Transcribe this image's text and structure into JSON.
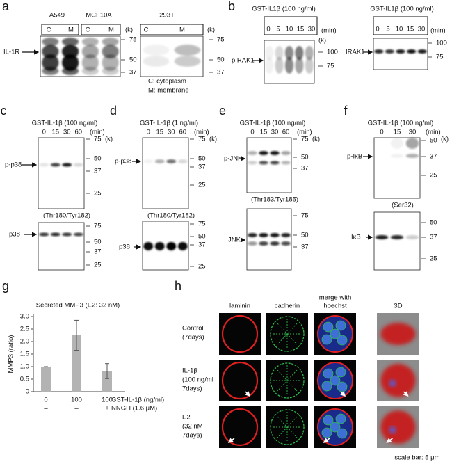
{
  "panels": {
    "a": {
      "label": "a",
      "blots": [
        {
          "headers": [
            "A549",
            "MCF10A"
          ],
          "lanes": [
            "C",
            "M",
            "C",
            "M"
          ],
          "unit": "(k)",
          "markers": [
            75,
            50,
            37
          ]
        },
        {
          "headers": [
            "293T"
          ],
          "lanes": [
            "C",
            "M"
          ],
          "unit": "(k)",
          "markers": [
            75,
            50,
            37
          ]
        }
      ],
      "protein": "IL-1R",
      "legend": [
        "C: cytoplasm",
        "M: membrane"
      ]
    },
    "b": {
      "label": "b",
      "blots": [
        {
          "treatment": "GST-IL1β (100 ng/ml)",
          "times": [
            0,
            5,
            10,
            15,
            30
          ],
          "time_unit": "(min)",
          "unit": "(k)",
          "protein": "pIRAK1",
          "markers": [
            100,
            75
          ]
        },
        {
          "treatment": "GST-IL1β (100 ng/ml)",
          "times": [
            0,
            5,
            10,
            15,
            30
          ],
          "time_unit": "(min)",
          "protein": "IRAK1",
          "markers": [
            100,
            75
          ]
        }
      ]
    },
    "c": {
      "label": "c",
      "treatment": "GST-IL-1β (100 ng/ml)",
      "times": [
        0,
        15,
        30,
        60
      ],
      "time_unit": "(min)",
      "unit": "(k)",
      "blots": [
        {
          "protein": "p-p38",
          "site": "(Thr180/Tyr182)",
          "markers": [
            75,
            50,
            37,
            25
          ]
        },
        {
          "protein": "p38",
          "markers": [
            75,
            50,
            37,
            25
          ]
        }
      ]
    },
    "d": {
      "label": "d",
      "treatment": "GST-IL-1β (1 ng/ml)",
      "times": [
        0,
        15,
        30,
        60
      ],
      "time_unit": "(min)",
      "unit": "(k)",
      "blots": [
        {
          "protein": "p-p38",
          "site": "(Thr180/Tyr182)",
          "markers": [
            75,
            50,
            37,
            25
          ]
        },
        {
          "protein": "p38",
          "markers": [
            75,
            50,
            37,
            25
          ]
        }
      ]
    },
    "e": {
      "label": "e",
      "treatment": "GST-IL-1β (100 ng/ml)",
      "times": [
        0,
        15,
        30,
        60
      ],
      "time_unit": "(min)",
      "unit": "(k)",
      "blots": [
        {
          "protein": "p-JNK",
          "site": "(Thr183/Tyr185)",
          "markers": [
            75,
            50,
            37
          ]
        },
        {
          "protein": "JNK",
          "markers": [
            75,
            50,
            37
          ]
        }
      ]
    },
    "f": {
      "label": "f",
      "treatment": "GST-IL-1β (100 ng/ml)",
      "times": [
        0,
        15,
        30
      ],
      "time_unit": "(min)",
      "unit": "(k)",
      "blots": [
        {
          "protein": "p-IκB",
          "site": "(Ser32)",
          "markers": [
            50,
            37,
            25
          ]
        },
        {
          "protein": "IκB",
          "markers": [
            50,
            37,
            25
          ]
        }
      ]
    },
    "h": {
      "label": "h",
      "columns": [
        [
          "laminin"
        ],
        [
          "cadherin"
        ],
        [
          "merge with",
          "hoechst"
        ],
        [
          "3D"
        ]
      ],
      "rows": [
        [
          "Control",
          "(7days)"
        ],
        [
          "IL-1β",
          "(100 ng/ml",
          "7days)"
        ],
        [
          "E2",
          "(32 nM",
          "7days)"
        ]
      ],
      "scale_bar": "scale bar: 5 μm"
    }
  },
  "chart_data": {
    "type": "bar",
    "panel_label": "g",
    "title": "Secreted MMP3 (E2: 32 nM)",
    "y_label": "MMP3 (ratio)",
    "categories": [
      "0",
      "100",
      "100"
    ],
    "category_label": "GST-IL-1β (ng/ml)",
    "second_row": {
      "label": "NNGH (1.6 μM)",
      "values": [
        "–",
        "–",
        "+"
      ]
    },
    "values": [
      1.0,
      2.25,
      0.82
    ],
    "errors": [
      0,
      0.6,
      0.3
    ],
    "color": "#b3b3b3",
    "ylim": [
      0,
      3
    ],
    "yticks": [
      0,
      0.5,
      {
        "value": 1,
        "label": "1.0"
      },
      1.5,
      {
        "value": 2,
        "label": "2.0"
      },
      2.5,
      {
        "value": 3,
        "label": "3.0"
      }
    ],
    "grid": false
  }
}
